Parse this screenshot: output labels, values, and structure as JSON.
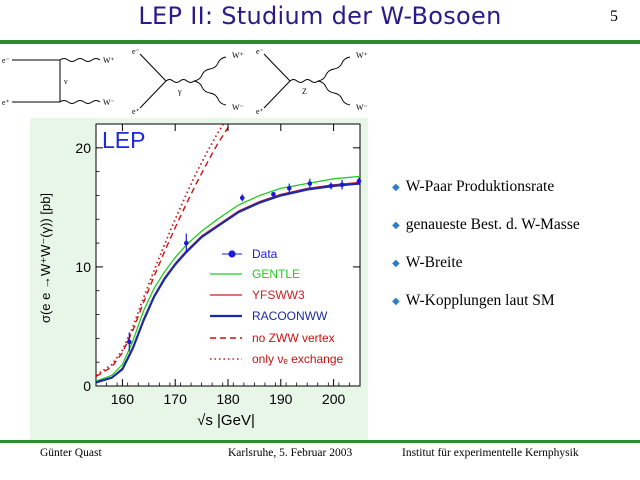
{
  "slide": {
    "title": "LEP II: Studium der W-Bosoen",
    "page_number": "5"
  },
  "diagrams": [
    {
      "labels": [
        "e⁻",
        "e⁺",
        "ν",
        "W⁺",
        "W⁻"
      ]
    },
    {
      "labels": [
        "e⁻",
        "e⁺",
        "γ",
        "W⁺",
        "W⁻"
      ]
    },
    {
      "labels": [
        "e⁻",
        "e⁺",
        "Z",
        "W⁺",
        "W⁻"
      ]
    }
  ],
  "chart_data": {
    "type": "line",
    "title": "LEP",
    "xlabel": "√s   |GeV|",
    "ylabel": "σ(e e →W⁺W⁻(γ))   [pb]",
    "xlim": [
      155,
      205
    ],
    "ylim": [
      0,
      22
    ],
    "xticks": [
      "160",
      "170",
      "180",
      "190",
      "200"
    ],
    "yticks": [
      "0",
      "10",
      "20"
    ],
    "colors": {
      "background": "#e6f5e6",
      "data": "#1a1ad8",
      "gentle": "#22cc22",
      "yfsww3": "#cc2222",
      "racoonww": "#1a2aa8",
      "dashed": "#cc1111",
      "dotted": "#cc1111",
      "title": "#1c2ad8"
    },
    "series": [
      {
        "name": "GENTLE",
        "style": "solid",
        "x": [
          155,
          158,
          160,
          162,
          164,
          166,
          168,
          170,
          172,
          175,
          178,
          182,
          186,
          190,
          195,
          200,
          205
        ],
        "y": [
          0.4,
          0.9,
          1.8,
          3.8,
          6.3,
          8.2,
          9.6,
          10.8,
          11.8,
          13.0,
          14.0,
          15.2,
          16.0,
          16.6,
          17.0,
          17.4,
          17.6
        ]
      },
      {
        "name": "YFSWW3",
        "style": "solid",
        "x": [
          155,
          158,
          160,
          162,
          164,
          166,
          168,
          170,
          172,
          175,
          178,
          182,
          186,
          190,
          195,
          200,
          205
        ],
        "y": [
          0.3,
          0.7,
          1.5,
          3.3,
          5.6,
          7.6,
          9.1,
          10.3,
          11.3,
          12.6,
          13.5,
          14.7,
          15.5,
          16.1,
          16.6,
          16.9,
          17.1
        ]
      },
      {
        "name": "RACOONWW",
        "style": "solid",
        "x": [
          155,
          158,
          160,
          162,
          164,
          166,
          168,
          170,
          172,
          175,
          178,
          182,
          186,
          190,
          195,
          200,
          205
        ],
        "y": [
          0.3,
          0.7,
          1.4,
          3.2,
          5.5,
          7.5,
          9.0,
          10.2,
          11.2,
          12.5,
          13.4,
          14.6,
          15.4,
          16.0,
          16.5,
          16.8,
          17.0
        ]
      },
      {
        "name": "no ZWW vertex",
        "style": "dashed",
        "x": [
          155,
          158,
          160,
          162,
          164,
          166,
          168,
          170,
          172,
          174,
          176,
          178,
          180,
          182
        ],
        "y": [
          0.8,
          1.6,
          2.8,
          4.7,
          7.0,
          9.2,
          11.3,
          13.3,
          15.2,
          17.0,
          18.7,
          20.3,
          21.7,
          23.0
        ]
      },
      {
        "name": "only νₑ exchange",
        "style": "dotted",
        "x": [
          155,
          158,
          160,
          162,
          164,
          166,
          168,
          170,
          172,
          174,
          176,
          178,
          180
        ],
        "y": [
          0.9,
          1.8,
          3.0,
          5.0,
          7.4,
          9.7,
          11.9,
          14.0,
          16.0,
          17.9,
          19.6,
          21.2,
          22.6
        ]
      }
    ],
    "data_points": [
      {
        "x": 161.3,
        "y": 3.7,
        "err": 0.8
      },
      {
        "x": 172.1,
        "y": 12.0,
        "err": 0.8
      },
      {
        "x": 182.7,
        "y": 15.8,
        "err": 0.3
      },
      {
        "x": 188.6,
        "y": 16.1,
        "err": 0.2
      },
      {
        "x": 191.6,
        "y": 16.6,
        "err": 0.4
      },
      {
        "x": 195.5,
        "y": 17.0,
        "err": 0.4
      },
      {
        "x": 199.5,
        "y": 16.8,
        "err": 0.3
      },
      {
        "x": 201.6,
        "y": 16.9,
        "err": 0.4
      },
      {
        "x": 204.8,
        "y": 17.2,
        "err": 0.3
      }
    ],
    "legend": {
      "placement": "bottom-right",
      "data_label": "Data",
      "gentle": "GENTLE",
      "yfsww3": "YFSWW3",
      "racoonww": "RACOONWW",
      "nozww": "no ZWW vertex",
      "onlynue": "only νₑ exchange"
    }
  },
  "bullets": [
    "W-Paar Produktionsrate",
    "genaueste Best. d. W-Masse",
    "W-Breite",
    "W-Kopplungen laut SM"
  ],
  "footer": {
    "author": "Günter Quast",
    "place_date": "Karlsruhe,  5. Februar 2003",
    "institute": "Institut für experimentelle Kernphysik"
  }
}
